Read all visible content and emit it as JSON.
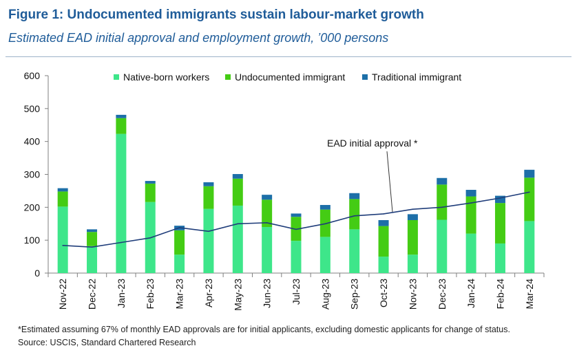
{
  "figure": {
    "title": "Figure 1: Undocumented immigrants sustain labour-market growth",
    "subtitle": "Estimated EAD initial approval and employment growth, ’000 persons",
    "footnote": "*Estimated assuming 67% of monthly EAD approvals are for initial applicants, excluding domestic applicants for change of status.",
    "source": "Source: USCIS, Standard Chartered Research"
  },
  "chart_data": {
    "type": "bar",
    "stacked": true,
    "categories": [
      "Nov-22",
      "Dec-22",
      "Jan-23",
      "Feb-23",
      "Mar-23",
      "Apr-23",
      "May-23",
      "Jun-23",
      "Jul-23",
      "Aug-23",
      "Sep-23",
      "Oct-23",
      "Nov-23",
      "Dec-23",
      "Jan-24",
      "Feb-24",
      "Mar-24"
    ],
    "series": [
      {
        "name": "Native-born workers",
        "color": "#3ee68a",
        "values": [
          202,
          82,
          423,
          216,
          56,
          195,
          205,
          140,
          98,
          110,
          133,
          50,
          56,
          162,
          120,
          90,
          158
        ]
      },
      {
        "name": "Undocumented immigrant",
        "color": "#44cc14",
        "values": [
          46,
          43,
          48,
          56,
          74,
          69,
          82,
          83,
          73,
          83,
          92,
          93,
          105,
          107,
          113,
          123,
          132
        ]
      },
      {
        "name": "Traditional immigrant",
        "color": "#1d6fa8",
        "values": [
          10,
          8,
          10,
          8,
          14,
          12,
          14,
          15,
          10,
          14,
          18,
          18,
          18,
          20,
          20,
          22,
          24
        ]
      }
    ],
    "line": {
      "name": "EAD initial approval *",
      "color": "#1f3d7a",
      "values": [
        84,
        79,
        93,
        107,
        138,
        127,
        150,
        153,
        133,
        150,
        174,
        180,
        194,
        200,
        213,
        228,
        246
      ]
    },
    "ylim": [
      0,
      600
    ],
    "yticks": [
      0,
      100,
      200,
      300,
      400,
      500,
      600
    ],
    "legend_position": "top",
    "grid": false
  }
}
